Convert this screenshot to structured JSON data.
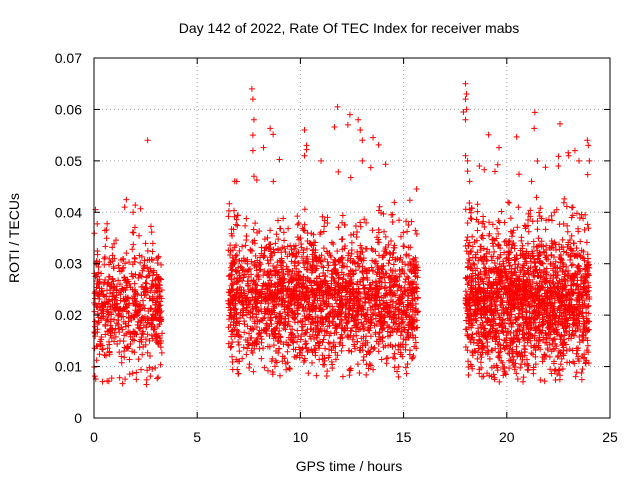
{
  "chart_data": {
    "type": "scatter",
    "title": "Day 142 of 2022, Rate Of TEC Index for receiver mabs",
    "xlabel": "GPS time / hours",
    "ylabel": "ROTI / TECUs",
    "xlim": [
      0,
      25
    ],
    "ylim": [
      0,
      0.07
    ],
    "xticks": [
      0,
      5,
      10,
      15,
      20,
      25
    ],
    "yticks": [
      0,
      0.01,
      0.02,
      0.03,
      0.04,
      0.05,
      0.06,
      0.07
    ],
    "xtick_labels": [
      "0",
      "5",
      "10",
      "15",
      "20",
      "25"
    ],
    "ytick_labels": [
      "0",
      "0.01",
      "0.02",
      "0.03",
      "0.04",
      "0.05",
      "0.06",
      "0.07"
    ],
    "grid": true,
    "marker": "plus",
    "point_color": "#ff0000",
    "series": [
      {
        "segments": [
          {
            "x_start": 0.0,
            "x_end": 3.3,
            "y_center": 0.021,
            "y_spread": 0.006,
            "y_min": 0.0065,
            "y_max": 0.043,
            "density": 600
          },
          {
            "x_start": 6.5,
            "x_end": 15.7,
            "y_center": 0.0225,
            "y_spread": 0.006,
            "y_min": 0.008,
            "y_max": 0.061,
            "density": 2200
          },
          {
            "x_start": 18.0,
            "x_end": 24.0,
            "y_center": 0.0225,
            "y_spread": 0.0065,
            "y_min": 0.007,
            "y_max": 0.065,
            "density": 1900
          }
        ],
        "highlights": [
          {
            "x": 2.6,
            "y": 0.054
          },
          {
            "x": 7.65,
            "y": 0.064
          },
          {
            "x": 7.7,
            "y": 0.062
          },
          {
            "x": 7.75,
            "y": 0.058
          },
          {
            "x": 7.7,
            "y": 0.055
          },
          {
            "x": 7.7,
            "y": 0.052
          },
          {
            "x": 7.75,
            "y": 0.047
          },
          {
            "x": 10.2,
            "y": 0.056
          },
          {
            "x": 10.3,
            "y": 0.053
          },
          {
            "x": 10.2,
            "y": 0.051
          },
          {
            "x": 11.8,
            "y": 0.0605
          },
          {
            "x": 12.4,
            "y": 0.059
          },
          {
            "x": 12.3,
            "y": 0.057
          },
          {
            "x": 12.8,
            "y": 0.058
          },
          {
            "x": 12.9,
            "y": 0.056
          },
          {
            "x": 13.0,
            "y": 0.054
          },
          {
            "x": 13.0,
            "y": 0.05
          },
          {
            "x": 11.0,
            "y": 0.05
          },
          {
            "x": 18.0,
            "y": 0.065
          },
          {
            "x": 18.05,
            "y": 0.063
          },
          {
            "x": 18.0,
            "y": 0.062
          },
          {
            "x": 18.05,
            "y": 0.06
          },
          {
            "x": 18.0,
            "y": 0.058
          },
          {
            "x": 17.9,
            "y": 0.0595
          },
          {
            "x": 18.0,
            "y": 0.051
          },
          {
            "x": 18.1,
            "y": 0.05
          },
          {
            "x": 18.1,
            "y": 0.048
          },
          {
            "x": 18.2,
            "y": 0.046
          },
          {
            "x": 23.0,
            "y": 0.051
          },
          {
            "x": 23.3,
            "y": 0.052
          },
          {
            "x": 23.5,
            "y": 0.05
          },
          {
            "x": 23.9,
            "y": 0.054
          },
          {
            "x": 23.95,
            "y": 0.053
          },
          {
            "x": 24.0,
            "y": 0.05
          },
          {
            "x": 22.5,
            "y": 0.049
          },
          {
            "x": 21.2,
            "y": 0.046
          }
        ]
      }
    ]
  }
}
